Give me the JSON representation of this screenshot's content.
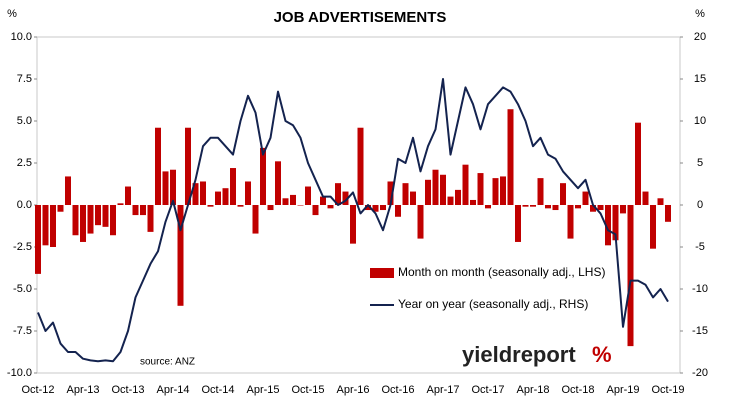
{
  "chart_data": {
    "type": "bar_line",
    "title": "JOB ADVERTISEMENTS",
    "ylabel": "%",
    "y2label": "%",
    "source": "source: ANZ",
    "logo": "yieldreport",
    "logo_mark": "%",
    "categories": [
      "Oct-12",
      null,
      null,
      null,
      null,
      null,
      "Apr-13",
      null,
      null,
      null,
      null,
      null,
      "Oct-13",
      null,
      null,
      null,
      null,
      null,
      "Apr-14",
      null,
      null,
      null,
      null,
      null,
      "Oct-14",
      null,
      null,
      null,
      null,
      null,
      "Apr-15",
      null,
      null,
      null,
      null,
      null,
      "Oct-15",
      null,
      null,
      null,
      null,
      null,
      "Apr-16",
      null,
      null,
      null,
      null,
      null,
      "Oct-16",
      null,
      null,
      null,
      null,
      null,
      "Apr-17",
      null,
      null,
      null,
      null,
      null,
      "Oct-17",
      null,
      null,
      null,
      null,
      null,
      "Apr-18",
      null,
      null,
      null,
      null,
      null,
      "Oct-18",
      null,
      null,
      null,
      null,
      null,
      "Apr-19",
      null,
      null,
      null,
      null,
      null,
      "Oct-19"
    ],
    "series": [
      {
        "name": "Month on month (seasonally adj., LHS)",
        "kind": "bar",
        "color": "#c00000",
        "axis": "y",
        "values": [
          -4.1,
          -2.4,
          -2.5,
          -0.4,
          1.7,
          -1.8,
          -2.2,
          -1.7,
          -1.2,
          -1.3,
          -1.8,
          0.1,
          1.1,
          -0.6,
          -0.6,
          -1.6,
          4.6,
          2.0,
          2.1,
          -6.0,
          4.6,
          1.3,
          1.4,
          -0.1,
          0.8,
          1.0,
          2.2,
          -0.1,
          1.4,
          -1.7,
          3.4,
          -0.3,
          2.6,
          0.4,
          0.6,
          0.0,
          1.1,
          -0.6,
          0.5,
          -0.2,
          1.3,
          0.8,
          -2.3,
          4.6,
          -0.3,
          -0.4,
          -0.3,
          1.4,
          -0.7,
          1.3,
          0.8,
          -2.0,
          1.5,
          2.1,
          1.8,
          0.5,
          0.9,
          2.4,
          0.3,
          1.9,
          -0.2,
          1.6,
          1.7,
          5.7,
          -2.2,
          -0.1,
          -0.1,
          1.6,
          -0.2,
          -0.3,
          1.3,
          -2.0,
          -0.2,
          0.8,
          -0.4,
          -0.3,
          -2.4,
          -2.1,
          -0.5,
          -8.4,
          4.9,
          0.8,
          -2.6,
          0.4,
          -1.0
        ]
      },
      {
        "name": "Year on year (seasonally adj., RHS)",
        "kind": "line",
        "color": "#14234f",
        "axis": "y2",
        "values": [
          -12.8,
          -15,
          -14,
          -16.5,
          -17.5,
          -17.5,
          -18.3,
          -18.5,
          -18.6,
          -18.5,
          -18.6,
          -17.5,
          -15,
          -11,
          -9,
          -7,
          -5.5,
          -2,
          0.5,
          -3,
          0,
          3,
          7,
          8,
          8,
          7,
          6,
          10,
          13,
          11,
          6,
          8,
          13.5,
          10,
          9.5,
          8,
          5,
          3,
          1,
          1,
          0,
          0.5,
          1.5,
          -1,
          0,
          -1,
          -3,
          0,
          5.5,
          5,
          8,
          4,
          7,
          9,
          15,
          6,
          10,
          14,
          12,
          9,
          12,
          13,
          14,
          13.5,
          12,
          10,
          7,
          8,
          6,
          5.5,
          4,
          3,
          2,
          3,
          0,
          -1,
          -3,
          -3.5,
          -14.5,
          -9,
          -9,
          -9.5,
          -11,
          -10,
          -11.5
        ]
      }
    ],
    "ylim": [
      -10,
      10
    ],
    "yticks": [
      {
        "value": -10,
        "label": "-10.0"
      },
      -7.5,
      {
        "value": -5,
        "label": "-5.0"
      },
      -2.5,
      {
        "value": 0,
        "label": "0.0"
      },
      2.5,
      {
        "value": 5,
        "label": "5.0"
      },
      7.5,
      {
        "value": 10,
        "label": "10.0"
      }
    ],
    "y2lim": [
      -20,
      20
    ],
    "y2ticks": [
      -20,
      -15,
      -10,
      -5,
      0,
      5,
      10,
      15,
      20
    ]
  }
}
